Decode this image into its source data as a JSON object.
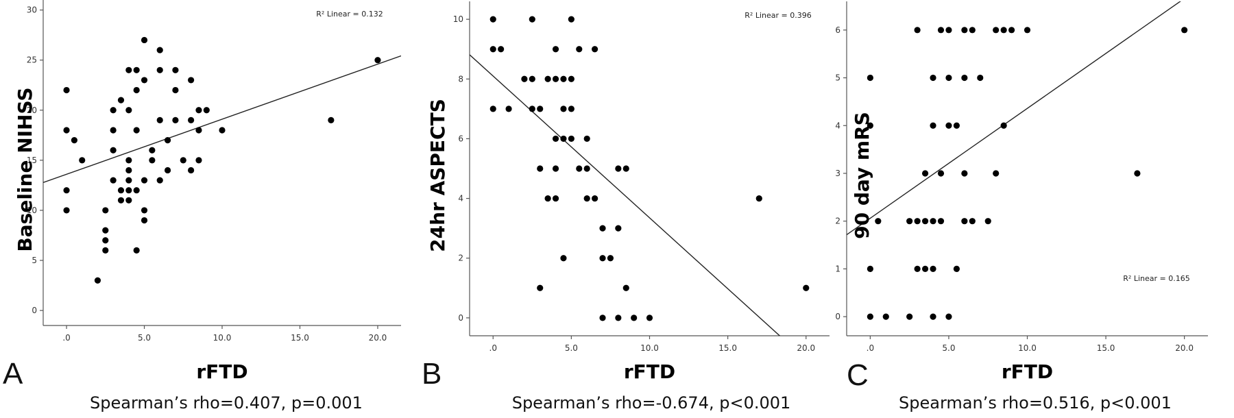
{
  "chart_data": [
    {
      "type": "scatter",
      "panel": "A",
      "title": "",
      "xlabel": "rFTD",
      "ylabel": "Baseline NIHSS",
      "xlim": [
        -1.5,
        21.5
      ],
      "ylim": [
        -1.5,
        31
      ],
      "xticks": [
        0,
        5,
        10,
        15,
        20
      ],
      "xtick_labels": [
        ".0",
        "5.0",
        "10.0",
        "15.0",
        "20.0"
      ],
      "yticks": [
        0,
        5,
        10,
        15,
        20,
        25,
        30
      ],
      "ytick_labels": [
        "0",
        "5",
        "10",
        "15",
        "20",
        "25",
        "30"
      ],
      "r2_label": "R² Linear = 0.132",
      "r2_position": "top-right",
      "fit_line": {
        "intercept": 13.6,
        "slope": 0.55
      },
      "caption": "Spearman’s rho=0.407, p=0.001",
      "points": [
        [
          0,
          22
        ],
        [
          0,
          18
        ],
        [
          0,
          12
        ],
        [
          0,
          10
        ],
        [
          0.5,
          17
        ],
        [
          1,
          15
        ],
        [
          2,
          3
        ],
        [
          2.5,
          10
        ],
        [
          2.5,
          8
        ],
        [
          2.5,
          7
        ],
        [
          2.5,
          6
        ],
        [
          3,
          20
        ],
        [
          3,
          18
        ],
        [
          3,
          16
        ],
        [
          3,
          13
        ],
        [
          3.5,
          21
        ],
        [
          3.5,
          12
        ],
        [
          3.5,
          11
        ],
        [
          4,
          24
        ],
        [
          4,
          20
        ],
        [
          4,
          15
        ],
        [
          4,
          14
        ],
        [
          4,
          13
        ],
        [
          4,
          12
        ],
        [
          4,
          11
        ],
        [
          4.5,
          24
        ],
        [
          4.5,
          22
        ],
        [
          4.5,
          18
        ],
        [
          4.5,
          12
        ],
        [
          4.5,
          6
        ],
        [
          5,
          27
        ],
        [
          5,
          23
        ],
        [
          5,
          13
        ],
        [
          5,
          10
        ],
        [
          5,
          9
        ],
        [
          5.5,
          16
        ],
        [
          5.5,
          15
        ],
        [
          6,
          26
        ],
        [
          6,
          24
        ],
        [
          6,
          19
        ],
        [
          6,
          13
        ],
        [
          6.5,
          17
        ],
        [
          6.5,
          14
        ],
        [
          7,
          24
        ],
        [
          7,
          22
        ],
        [
          7,
          19
        ],
        [
          7.5,
          15
        ],
        [
          8,
          23
        ],
        [
          8,
          19
        ],
        [
          8,
          14
        ],
        [
          8.5,
          20
        ],
        [
          8.5,
          18
        ],
        [
          8.5,
          15
        ],
        [
          9,
          20
        ],
        [
          10,
          18
        ],
        [
          17,
          19
        ],
        [
          20,
          25
        ]
      ]
    },
    {
      "type": "scatter",
      "panel": "B",
      "title": "",
      "xlabel": "rFTD",
      "ylabel": "24hr ASPECTS",
      "xlim": [
        -1.5,
        21.5
      ],
      "ylim": [
        -0.6,
        10.6
      ],
      "xticks": [
        0,
        5,
        10,
        15,
        20
      ],
      "xtick_labels": [
        ".0",
        "5.0",
        "10.0",
        "15.0",
        "20.0"
      ],
      "yticks": [
        0,
        2,
        4,
        6,
        8,
        10
      ],
      "ytick_labels": [
        "0",
        "2",
        "4",
        "6",
        "8",
        "10"
      ],
      "r2_label": "R² Linear = 0.396",
      "r2_position": "top-right",
      "fit_line": {
        "intercept": 8.1,
        "slope": -0.475
      },
      "caption": "Spearman’s rho=-0.674, p<0.001",
      "points": [
        [
          0,
          10
        ],
        [
          0,
          9
        ],
        [
          0,
          7
        ],
        [
          0.5,
          9
        ],
        [
          1,
          7
        ],
        [
          2,
          8
        ],
        [
          2.5,
          10
        ],
        [
          2.5,
          8
        ],
        [
          2.5,
          7
        ],
        [
          3,
          7
        ],
        [
          3,
          5
        ],
        [
          3,
          1
        ],
        [
          3.5,
          8
        ],
        [
          3.5,
          4
        ],
        [
          4,
          9
        ],
        [
          4,
          8
        ],
        [
          4,
          6
        ],
        [
          4,
          5
        ],
        [
          4,
          4
        ],
        [
          4.5,
          8
        ],
        [
          4.5,
          7
        ],
        [
          4.5,
          6
        ],
        [
          4.5,
          2
        ],
        [
          5,
          10
        ],
        [
          5,
          8
        ],
        [
          5,
          7
        ],
        [
          5,
          6
        ],
        [
          5.5,
          9
        ],
        [
          5.5,
          5
        ],
        [
          6,
          6
        ],
        [
          6,
          5
        ],
        [
          6,
          4
        ],
        [
          6.5,
          9
        ],
        [
          6.5,
          4
        ],
        [
          7,
          3
        ],
        [
          7,
          2
        ],
        [
          7,
          0
        ],
        [
          7.5,
          2
        ],
        [
          8,
          5
        ],
        [
          8,
          3
        ],
        [
          8,
          0
        ],
        [
          8.5,
          5
        ],
        [
          8.5,
          1
        ],
        [
          9,
          0
        ],
        [
          10,
          0
        ],
        [
          17,
          4
        ],
        [
          20,
          1
        ]
      ]
    },
    {
      "type": "scatter",
      "panel": "C",
      "title": "",
      "xlabel": "rFTD",
      "ylabel": "90 day mRS",
      "xlim": [
        -1.5,
        21.5
      ],
      "ylim": [
        -0.4,
        6.6
      ],
      "xticks": [
        0,
        5,
        10,
        15,
        20
      ],
      "xtick_labels": [
        ".0",
        "5.0",
        "10.0",
        "15.0",
        "20.0"
      ],
      "yticks": [
        0,
        1,
        2,
        3,
        4,
        5,
        6
      ],
      "ytick_labels": [
        "0",
        "1",
        "2",
        "3",
        "4",
        "5",
        "6"
      ],
      "r2_label": "R² Linear = 0.165",
      "r2_position": "bottom-right",
      "fit_line": {
        "intercept": 2.06,
        "slope": 0.23
      },
      "caption": "Spearman’s rho=0.516, p<0.001",
      "points": [
        [
          0,
          5
        ],
        [
          0,
          4
        ],
        [
          0,
          1
        ],
        [
          0,
          0
        ],
        [
          0.5,
          2
        ],
        [
          1,
          0
        ],
        [
          2.5,
          2
        ],
        [
          2.5,
          0
        ],
        [
          3,
          6
        ],
        [
          3,
          2
        ],
        [
          3,
          1
        ],
        [
          3.5,
          3
        ],
        [
          3.5,
          2
        ],
        [
          3.5,
          1
        ],
        [
          4,
          5
        ],
        [
          4,
          4
        ],
        [
          4,
          2
        ],
        [
          4,
          1
        ],
        [
          4,
          0
        ],
        [
          4.5,
          6
        ],
        [
          4.5,
          3
        ],
        [
          4.5,
          2
        ],
        [
          5,
          6
        ],
        [
          5,
          5
        ],
        [
          5,
          4
        ],
        [
          5,
          0
        ],
        [
          5.5,
          4
        ],
        [
          5.5,
          1
        ],
        [
          6,
          6
        ],
        [
          6,
          5
        ],
        [
          6,
          3
        ],
        [
          6,
          2
        ],
        [
          6.5,
          6
        ],
        [
          6.5,
          2
        ],
        [
          7,
          5
        ],
        [
          7.5,
          2
        ],
        [
          8,
          6
        ],
        [
          8,
          3
        ],
        [
          8.5,
          6
        ],
        [
          8.5,
          4
        ],
        [
          9,
          6
        ],
        [
          10,
          6
        ],
        [
          17,
          3
        ],
        [
          20,
          6
        ]
      ]
    }
  ]
}
